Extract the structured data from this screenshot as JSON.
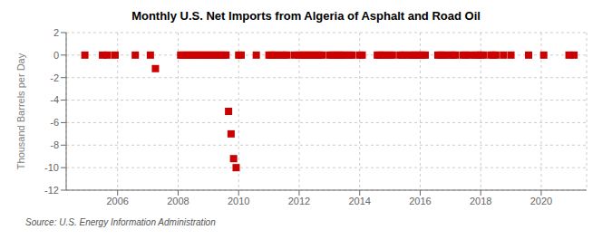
{
  "chart_data": {
    "type": "scatter",
    "title": "Monthly U.S. Net Imports from Algeria of Asphalt and Road Oil",
    "ylabel": "Thousand Barrels per Day",
    "annotations": [
      "Source: U.S. Energy Information Administration"
    ],
    "color": "#cc0000",
    "marker": "square",
    "grid": true,
    "xlim": [
      2004.3,
      2021.5
    ],
    "ylim": [
      -12,
      2
    ],
    "yticks": [
      2,
      0,
      -2,
      -4,
      -6,
      -8,
      -10,
      -12
    ],
    "xticks": [
      2006,
      2008,
      2010,
      2012,
      2014,
      2016,
      2018,
      2020
    ],
    "x": [
      2004.917,
      2005.5,
      2005.667,
      2005.917,
      2006.583,
      2007.083,
      2007.25,
      2008.083,
      2008.167,
      2008.25,
      2008.333,
      2008.417,
      2008.5,
      2008.583,
      2008.667,
      2008.75,
      2008.833,
      2008.917,
      2009.0,
      2009.083,
      2009.167,
      2009.25,
      2009.333,
      2009.417,
      2009.5,
      2009.583,
      2009.667,
      2009.75,
      2009.833,
      2009.917,
      2010.0,
      2010.083,
      2010.583,
      2011.0,
      2011.083,
      2011.167,
      2011.25,
      2011.417,
      2011.5,
      2011.583,
      2011.833,
      2012.0,
      2012.083,
      2012.167,
      2012.25,
      2012.333,
      2012.417,
      2012.5,
      2012.583,
      2012.667,
      2012.75,
      2013.0,
      2013.083,
      2013.167,
      2013.25,
      2013.333,
      2013.417,
      2013.5,
      2013.667,
      2013.75,
      2014.0,
      2014.083,
      2014.583,
      2014.667,
      2014.75,
      2014.833,
      2015.0,
      2015.083,
      2015.333,
      2015.417,
      2015.5,
      2015.667,
      2015.75,
      2015.833,
      2015.917,
      2016.0,
      2016.083,
      2016.167,
      2016.583,
      2016.667,
      2016.75,
      2016.833,
      2017.0,
      2017.083,
      2017.167,
      2017.417,
      2017.5,
      2017.667,
      2017.833,
      2017.917,
      2018.0,
      2018.083,
      2018.333,
      2018.417,
      2018.5,
      2018.75,
      2019.0,
      2019.583,
      2020.083,
      2020.917,
      2021.083
    ],
    "values": [
      0,
      0,
      0,
      0,
      0,
      0,
      -1.2,
      0,
      0,
      0,
      0,
      0,
      0,
      0,
      0,
      0,
      0,
      0,
      0,
      0,
      0,
      0,
      0,
      0,
      0,
      0,
      -5.0,
      -7.0,
      -9.2,
      -10.0,
      0,
      0,
      0,
      0,
      0,
      0,
      0,
      0,
      0,
      0,
      0,
      0,
      0,
      0,
      0,
      0,
      0,
      0,
      0,
      0,
      0,
      0,
      0,
      0,
      0,
      0,
      0,
      0,
      0,
      0,
      0,
      0,
      0,
      0,
      0,
      0,
      0,
      0,
      0,
      0,
      0,
      0,
      0,
      0,
      0,
      0,
      0,
      0,
      0,
      0,
      0,
      0,
      0,
      0,
      0,
      0,
      0,
      0,
      0,
      0,
      0,
      0,
      0,
      0,
      0,
      0,
      0,
      0,
      0,
      0,
      0
    ]
  }
}
